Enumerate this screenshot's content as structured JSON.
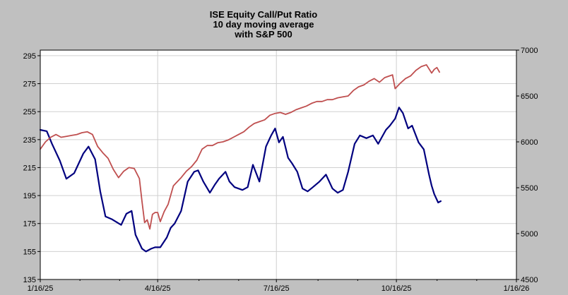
{
  "chart_data": {
    "type": "line",
    "title": [
      "ISE Equity Call/Put Ratio",
      "10 day moving average",
      "with S&P 500"
    ],
    "xlabel": "",
    "ylabel": "",
    "y2label": "",
    "x_ticks": [
      "1/16/25",
      "4/16/25",
      "7/16/25",
      "10/16/25",
      "1/16/26"
    ],
    "x_tick_days": [
      0,
      90,
      181,
      273,
      365
    ],
    "xlim": [
      0,
      365
    ],
    "y_ticks": [
      "295",
      "275",
      "255",
      "235",
      "215",
      "195",
      "175",
      "155",
      "135"
    ],
    "ylim": [
      135,
      299
    ],
    "y2_ticks": [
      "7000",
      "6500",
      "6000",
      "5500",
      "5000",
      "4500"
    ],
    "y2lim": [
      4500,
      7000
    ],
    "grid": true,
    "colors": {
      "plot_bg": "#ffffff",
      "page_bg": "#c0c0c0",
      "grid": "#d0d0d0"
    },
    "series": [
      {
        "axis": "left",
        "color": "#00007f",
        "x": [
          0,
          5,
          9,
          15,
          20,
          26,
          33,
          37,
          42,
          46,
          50,
          55,
          62,
          66,
          70,
          73,
          78,
          81,
          85,
          88,
          92,
          97,
          100,
          103,
          108,
          113,
          118,
          121,
          125,
          130,
          134,
          137,
          142,
          145,
          149,
          155,
          159,
          163,
          168,
          173,
          177,
          180,
          183,
          186,
          190,
          193,
          197,
          201,
          205,
          209,
          214,
          219,
          224,
          228,
          232,
          236,
          241,
          245,
          250,
          255,
          259,
          262,
          265,
          268,
          272,
          275,
          278,
          282,
          285,
          290,
          294,
          298,
          300,
          302,
          305,
          307
        ],
        "values": [
          242,
          241,
          232,
          220,
          207,
          211,
          225,
          230,
          221,
          198,
          180,
          178,
          174,
          182,
          184,
          167,
          157,
          155,
          157,
          158,
          158,
          165,
          172,
          175,
          184,
          205,
          212,
          213,
          205,
          197,
          203,
          207,
          212,
          205,
          201,
          199,
          201,
          217,
          205,
          230,
          238,
          243,
          233,
          237,
          222,
          218,
          212,
          200,
          198,
          201,
          205,
          210,
          200,
          197,
          199,
          212,
          232,
          238,
          236,
          238,
          232,
          237,
          242,
          245,
          250,
          258,
          254,
          243,
          245,
          233,
          228,
          210,
          202,
          196,
          190,
          191
        ]
      },
      {
        "axis": "right",
        "color": "#bf4f4f",
        "x": [
          0,
          4,
          8,
          12,
          16,
          20,
          24,
          28,
          32,
          36,
          40,
          44,
          48,
          52,
          56,
          60,
          64,
          68,
          72,
          76,
          78,
          80,
          82,
          84,
          86,
          88,
          90,
          92,
          95,
          98,
          100,
          102,
          104,
          108,
          112,
          116,
          120,
          124,
          128,
          132,
          136,
          140,
          144,
          148,
          152,
          156,
          160,
          164,
          168,
          172,
          176,
          180,
          184,
          188,
          192,
          196,
          200,
          204,
          208,
          212,
          216,
          220,
          224,
          228,
          232,
          236,
          240,
          244,
          248,
          252,
          256,
          260,
          264,
          268,
          270,
          272,
          276,
          280,
          284,
          288,
          292,
          296,
          300,
          302,
          304,
          306
        ],
        "values": [
          5920,
          6000,
          6050,
          6080,
          6050,
          6060,
          6070,
          6080,
          6100,
          6110,
          6080,
          5950,
          5880,
          5820,
          5700,
          5610,
          5680,
          5720,
          5710,
          5600,
          5350,
          5120,
          5150,
          5050,
          5210,
          5230,
          5230,
          5130,
          5240,
          5320,
          5420,
          5520,
          5550,
          5610,
          5680,
          5730,
          5800,
          5920,
          5960,
          5960,
          5990,
          6000,
          6020,
          6050,
          6080,
          6110,
          6160,
          6200,
          6220,
          6240,
          6290,
          6310,
          6320,
          6300,
          6320,
          6350,
          6370,
          6390,
          6420,
          6440,
          6440,
          6460,
          6460,
          6480,
          6490,
          6500,
          6560,
          6600,
          6620,
          6660,
          6690,
          6650,
          6700,
          6720,
          6730,
          6580,
          6640,
          6690,
          6720,
          6780,
          6820,
          6840,
          6750,
          6790,
          6810,
          6760
        ]
      }
    ]
  }
}
